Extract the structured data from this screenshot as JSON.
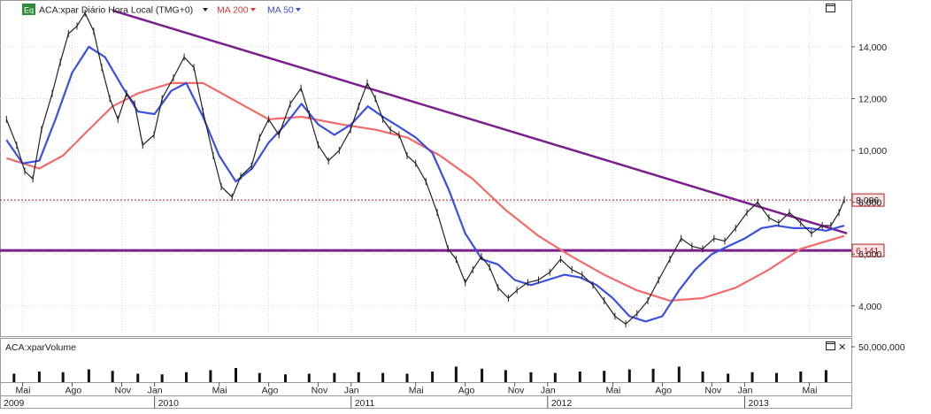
{
  "header": {
    "eq_badge": "Eq",
    "instrument_label": "ACA:xpar Diário Hora Local (TMG+0)",
    "ma200_label": "MA 200",
    "ma50_label": "MA 50"
  },
  "volume_panel": {
    "title": "ACA:xparVolume",
    "close_glyph": "✕"
  },
  "colors": {
    "price_line": "#222222",
    "ma200": "#f26b6b",
    "ma50": "#3b4fe0",
    "trendline": "#7a1f8c",
    "support": "#7a1f8c",
    "resistance_dotted": "#b02020",
    "grid": "#d7d7d7",
    "axis_text": "#222222",
    "price_badge_bg": "#f7e3e3",
    "price_badge_border": "#b02020",
    "header_badge_bg": "#2e8b3a"
  },
  "chart_data": {
    "type": "line",
    "title": "ACA:xpar Diário Hora Local (TMG+0)",
    "x_ticks": [
      "Mai",
      "Ago",
      "Nov",
      "Jan",
      "Mai",
      "Ago",
      "Nov",
      "Jan",
      "Mai",
      "Ago",
      "Nov",
      "Jan",
      "Mai",
      "Ago",
      "Nov",
      "Jan",
      "Mai"
    ],
    "year_labels": [
      "2009",
      "2010",
      "2011",
      "2012",
      "2013"
    ],
    "y_ticks": [
      "14,000",
      "12,000",
      "10,000",
      "8,000",
      "6,000",
      "4,000"
    ],
    "ylim": [
      2.9,
      15.6
    ],
    "series": [
      {
        "name": "ACA:xpar",
        "x": [
          "2009-04-01",
          "2009-04-20",
          "2009-05-05",
          "2009-05-20",
          "2009-06-05",
          "2009-06-25",
          "2009-07-10",
          "2009-07-25",
          "2009-08-10",
          "2009-08-25",
          "2009-09-10",
          "2009-09-25",
          "2009-10-10",
          "2009-10-25",
          "2009-11-10",
          "2009-11-25",
          "2009-12-10",
          "2009-12-31",
          "2010-01-15",
          "2010-02-05",
          "2010-02-25",
          "2010-03-15",
          "2010-04-01",
          "2010-04-20",
          "2010-05-05",
          "2010-05-25",
          "2010-06-10",
          "2010-06-30",
          "2010-07-15",
          "2010-08-01",
          "2010-08-20",
          "2010-09-10",
          "2010-09-30",
          "2010-10-15",
          "2010-11-01",
          "2010-11-20",
          "2010-12-10",
          "2010-12-31",
          "2011-01-15",
          "2011-01-31",
          "2011-02-15",
          "2011-03-01",
          "2011-03-15",
          "2011-03-31",
          "2011-04-15",
          "2011-05-01",
          "2011-05-20",
          "2011-06-10",
          "2011-06-30",
          "2011-07-15",
          "2011-08-01",
          "2011-08-15",
          "2011-08-31",
          "2011-09-15",
          "2011-10-01",
          "2011-10-20",
          "2011-11-05",
          "2011-11-25",
          "2011-12-15",
          "2012-01-05",
          "2012-01-25",
          "2012-02-15",
          "2012-03-05",
          "2012-03-25",
          "2012-04-15",
          "2012-05-05",
          "2012-05-25",
          "2012-06-15",
          "2012-07-05",
          "2012-07-25",
          "2012-08-15",
          "2012-09-05",
          "2012-09-25",
          "2012-10-15",
          "2012-11-05",
          "2012-11-25",
          "2012-12-15",
          "2013-01-05",
          "2013-01-25",
          "2013-02-15",
          "2013-03-05",
          "2013-03-25",
          "2013-04-15",
          "2013-05-05",
          "2013-05-25",
          "2013-06-10",
          "2013-06-25",
          "2013-07-05"
        ],
        "values": [
          11.2,
          10.2,
          9.2,
          8.9,
          10.8,
          12.2,
          13.4,
          14.5,
          14.8,
          15.3,
          14.6,
          13.2,
          12.0,
          11.2,
          12.2,
          11.8,
          10.2,
          10.6,
          12.0,
          12.8,
          13.6,
          13.2,
          11.5,
          9.8,
          8.6,
          8.2,
          9.0,
          9.4,
          10.5,
          11.2,
          10.6,
          11.8,
          12.4,
          11.4,
          10.2,
          9.6,
          10.0,
          10.8,
          11.7,
          12.6,
          12.0,
          11.2,
          10.8,
          10.6,
          9.8,
          9.5,
          8.8,
          7.6,
          6.2,
          5.8,
          4.9,
          5.4,
          5.9,
          5.5,
          4.7,
          4.3,
          4.6,
          4.9,
          5.0,
          5.3,
          5.8,
          5.4,
          5.2,
          4.8,
          4.2,
          3.6,
          3.3,
          3.7,
          4.2,
          5.0,
          5.8,
          6.6,
          6.3,
          6.2,
          6.6,
          6.5,
          7.0,
          7.6,
          8.0,
          7.4,
          7.2,
          7.6,
          7.2,
          6.8,
          7.1,
          7.1,
          7.6,
          8.1
        ]
      },
      {
        "name": "MA 200",
        "x": [
          "2009-04-01",
          "2009-06-01",
          "2009-07-15",
          "2009-09-01",
          "2009-10-15",
          "2009-12-01",
          "2010-02-01",
          "2010-04-01",
          "2010-06-01",
          "2010-08-01",
          "2010-10-01",
          "2010-12-15",
          "2011-02-15",
          "2011-04-15",
          "2011-06-15",
          "2011-08-15",
          "2011-10-15",
          "2011-12-15",
          "2012-02-15",
          "2012-04-15",
          "2012-06-15",
          "2012-08-15",
          "2012-10-15",
          "2012-12-15",
          "2013-02-15",
          "2013-04-15",
          "2013-07-05"
        ],
        "values": [
          9.7,
          9.3,
          9.8,
          10.8,
          11.7,
          12.2,
          12.6,
          12.6,
          11.9,
          11.2,
          11.3,
          11.0,
          10.8,
          10.5,
          9.8,
          8.9,
          7.7,
          6.7,
          5.9,
          5.2,
          4.6,
          4.2,
          4.3,
          4.7,
          5.4,
          6.2,
          6.7
        ]
      },
      {
        "name": "MA 50",
        "x": [
          "2009-04-01",
          "2009-05-01",
          "2009-06-01",
          "2009-07-01",
          "2009-08-01",
          "2009-09-01",
          "2009-10-01",
          "2009-11-01",
          "2009-12-01",
          "2010-01-01",
          "2010-02-01",
          "2010-03-01",
          "2010-04-01",
          "2010-05-01",
          "2010-06-01",
          "2010-07-01",
          "2010-08-01",
          "2010-09-01",
          "2010-10-01",
          "2010-11-01",
          "2010-12-01",
          "2011-01-01",
          "2011-02-01",
          "2011-03-01",
          "2011-04-01",
          "2011-05-01",
          "2011-06-01",
          "2011-07-01",
          "2011-08-01",
          "2011-09-01",
          "2011-10-01",
          "2011-11-01",
          "2011-12-01",
          "2012-01-01",
          "2012-02-01",
          "2012-03-01",
          "2012-04-01",
          "2012-05-01",
          "2012-06-01",
          "2012-07-01",
          "2012-08-01",
          "2012-09-01",
          "2012-10-01",
          "2012-11-01",
          "2012-12-01",
          "2013-01-01",
          "2013-02-01",
          "2013-03-01",
          "2013-04-01",
          "2013-05-01",
          "2013-06-01",
          "2013-07-05"
        ],
        "values": [
          10.4,
          9.5,
          9.6,
          11.2,
          13.0,
          14.0,
          13.6,
          12.5,
          11.5,
          11.4,
          12.3,
          12.6,
          11.3,
          9.8,
          8.8,
          9.3,
          10.3,
          11.0,
          11.8,
          11.0,
          10.6,
          11.0,
          11.7,
          11.3,
          10.9,
          10.5,
          9.9,
          8.5,
          6.8,
          5.8,
          5.6,
          5.0,
          4.8,
          5.0,
          5.2,
          5.1,
          4.8,
          4.3,
          3.6,
          3.4,
          3.6,
          4.6,
          5.4,
          6.0,
          6.3,
          6.6,
          7.0,
          7.1,
          7.0,
          7.0,
          6.9,
          7.1
        ]
      }
    ],
    "volume": {
      "axis_label": "50,000,000",
      "ylim": [
        0,
        60000000
      ],
      "x": [
        "2009-04-15",
        "2009-06-01",
        "2009-07-15",
        "2009-09-01",
        "2009-10-15",
        "2009-12-01",
        "2010-01-15",
        "2010-03-01",
        "2010-04-15",
        "2010-06-01",
        "2010-07-15",
        "2010-09-01",
        "2010-10-15",
        "2010-12-01",
        "2011-01-15",
        "2011-03-01",
        "2011-04-15",
        "2011-06-01",
        "2011-07-15",
        "2011-09-01",
        "2011-10-15",
        "2011-12-01",
        "2012-01-15",
        "2012-03-01",
        "2012-04-15",
        "2012-06-01",
        "2012-07-15",
        "2012-09-01",
        "2012-10-15",
        "2012-12-01",
        "2013-01-15",
        "2013-03-01",
        "2013-04-15",
        "2013-06-01"
      ],
      "values": [
        12000000,
        15000000,
        14000000,
        18000000,
        16000000,
        12000000,
        11000000,
        14000000,
        17000000,
        20000000,
        13000000,
        11000000,
        12000000,
        13000000,
        14000000,
        13000000,
        12000000,
        15000000,
        22000000,
        19000000,
        17000000,
        14000000,
        13000000,
        15000000,
        16000000,
        18000000,
        19000000,
        22000000,
        15000000,
        12000000,
        14000000,
        13000000,
        15000000,
        17000000
      ]
    },
    "reference_lines": {
      "resistance": {
        "value": 8.086,
        "label": "8,086",
        "style": "dotted"
      },
      "support": {
        "value": 6.141,
        "label": "6,141",
        "style": "solid"
      },
      "trendline": {
        "x": [
          "2009-10-15",
          "2013-07-10"
        ],
        "values": [
          15.4,
          6.8
        ]
      }
    },
    "legend": "top-left",
    "grid": true
  }
}
